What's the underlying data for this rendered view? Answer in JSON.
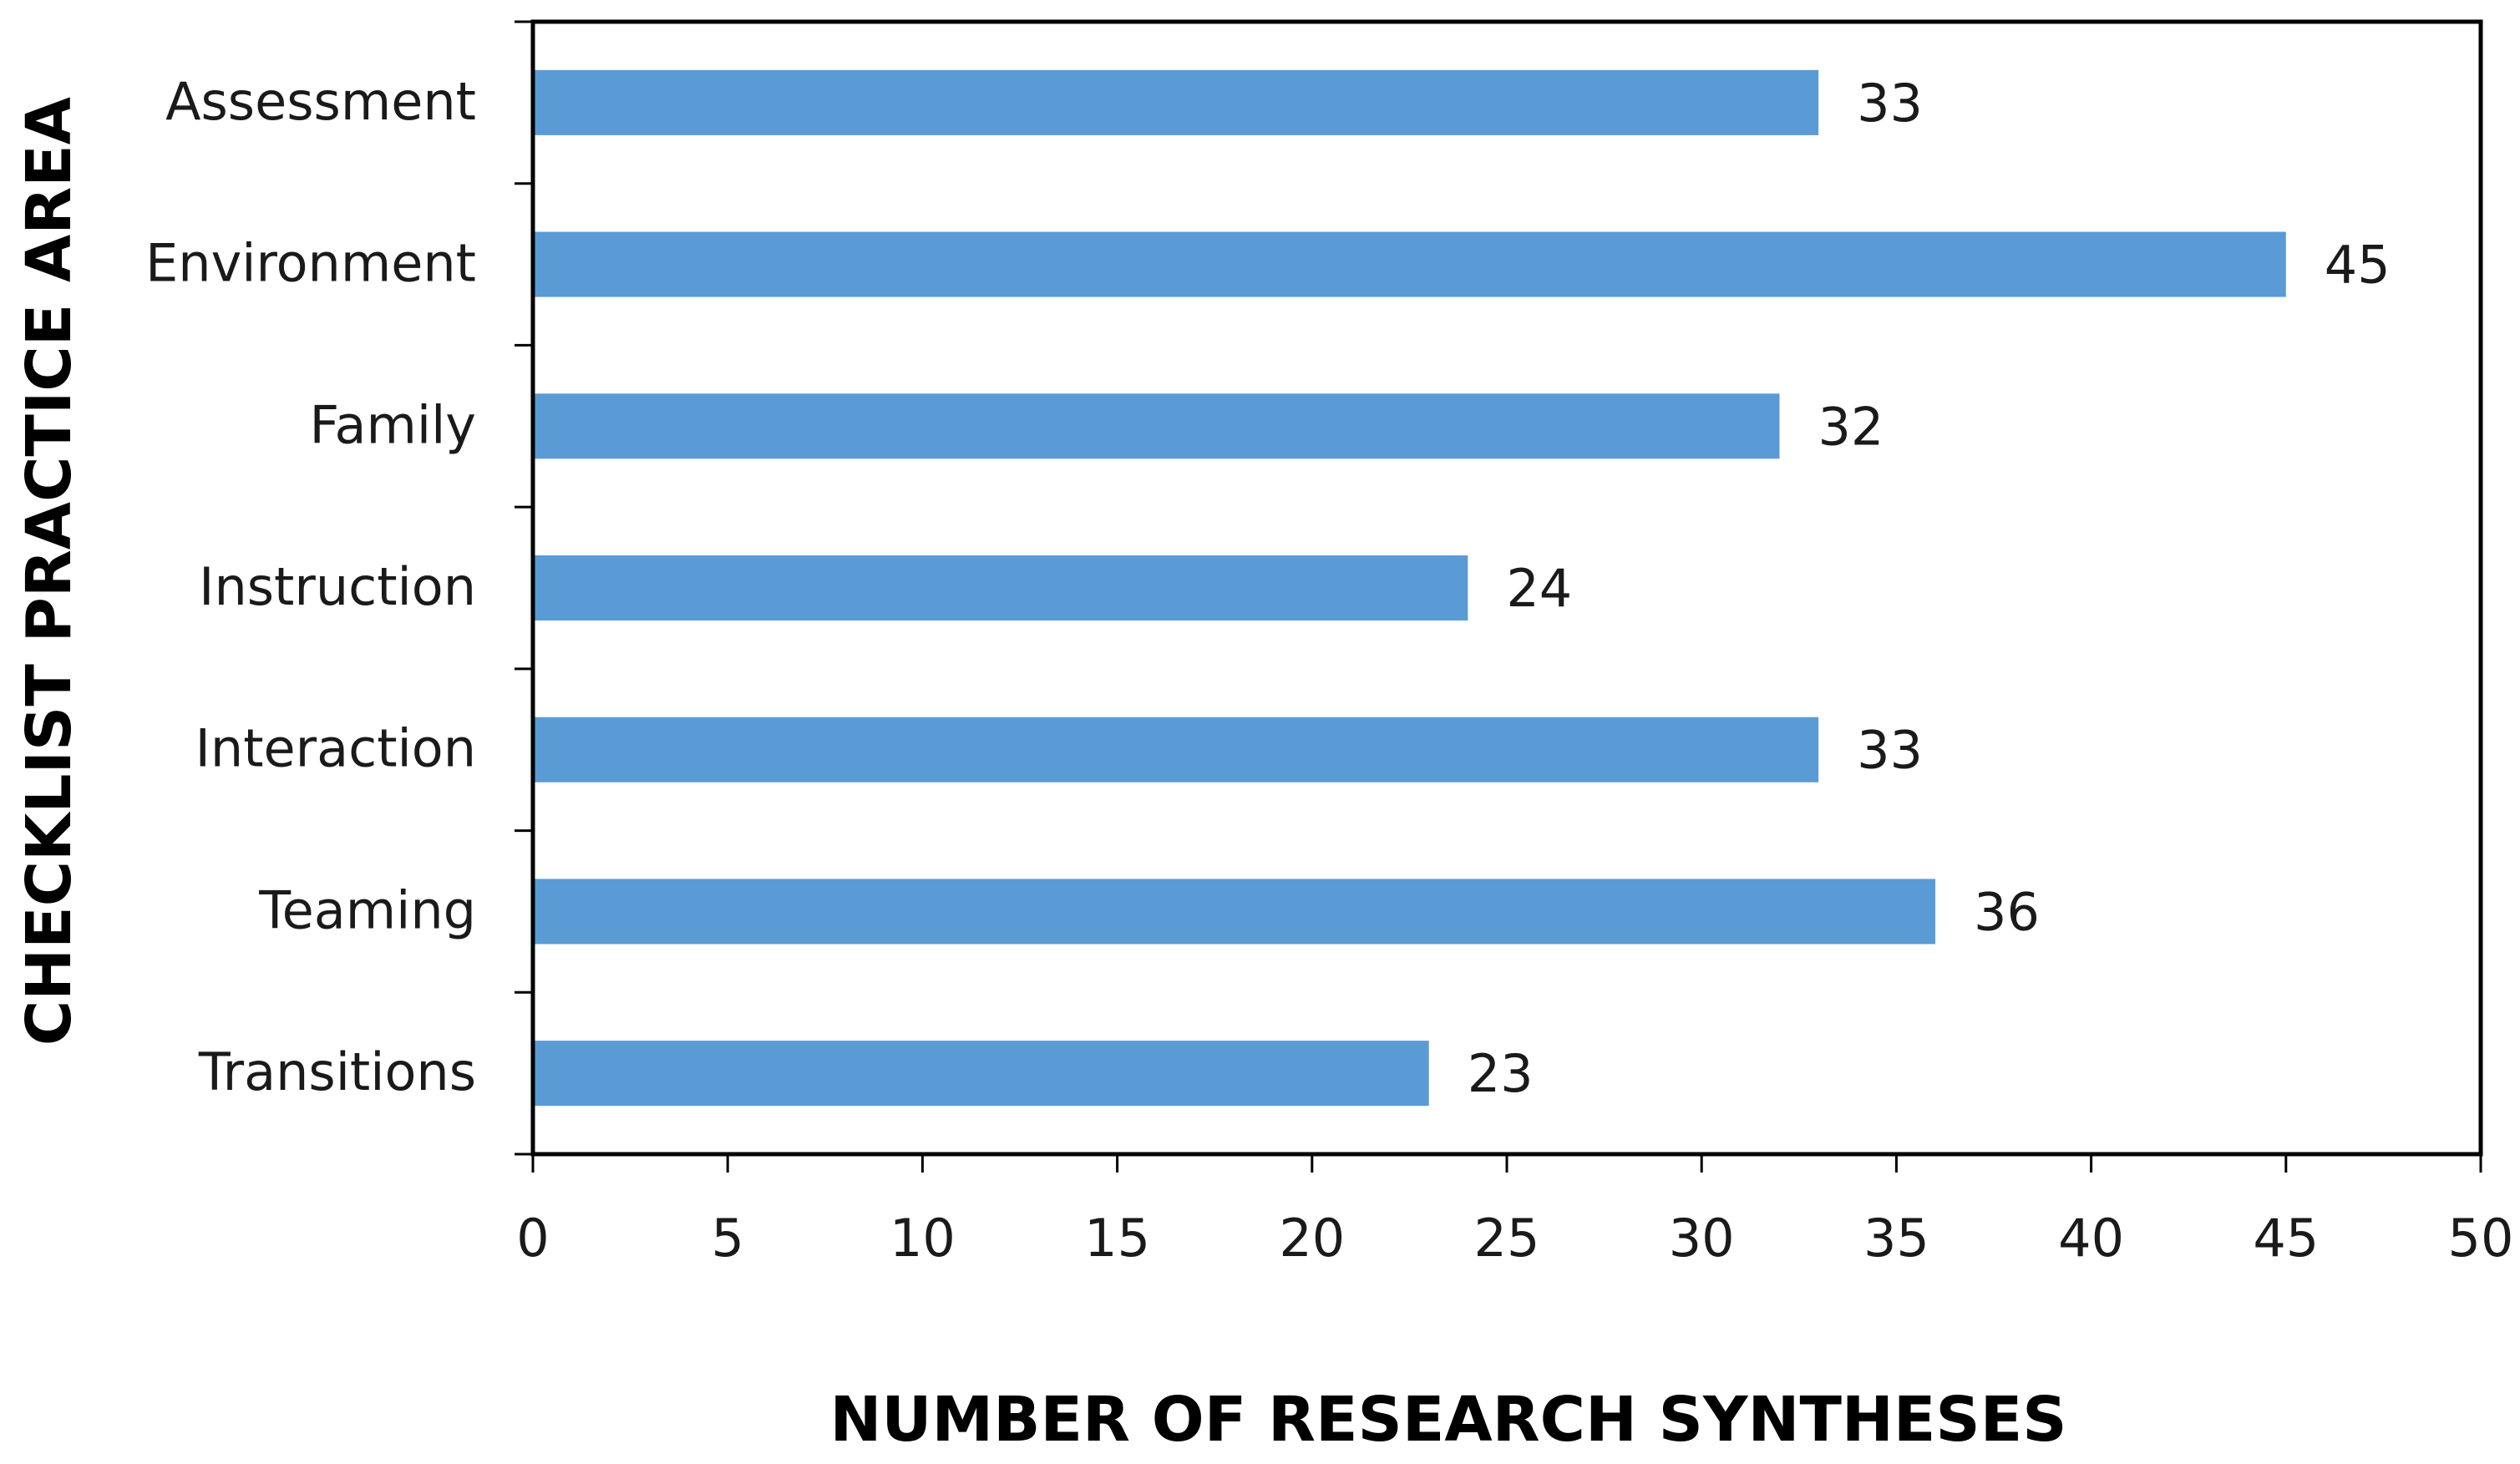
{
  "chart_data": {
    "type": "bar",
    "orientation": "horizontal",
    "categories": [
      "Assessment",
      "Environment",
      "Family",
      "Instruction",
      "Interaction",
      "Teaming",
      "Transitions"
    ],
    "values": [
      33,
      45,
      32,
      24,
      33,
      36,
      23
    ],
    "data_labels": [
      "33",
      "45",
      "32",
      "24",
      "33",
      "36",
      "23"
    ],
    "xlabel": "NUMBER OF RESEARCH SYNTHESES",
    "ylabel": "CHECKLIST PRACTICE AREA",
    "xlim": [
      0,
      50
    ],
    "xticks": [
      0,
      5,
      10,
      15,
      20,
      25,
      30,
      35,
      40,
      45,
      50
    ],
    "xtick_labels": [
      "0",
      "5",
      "10",
      "15",
      "20",
      "25",
      "30",
      "35",
      "40",
      "45",
      "50"
    ],
    "grid": false,
    "legend": "none",
    "bar_color": "#5b9bd5"
  }
}
